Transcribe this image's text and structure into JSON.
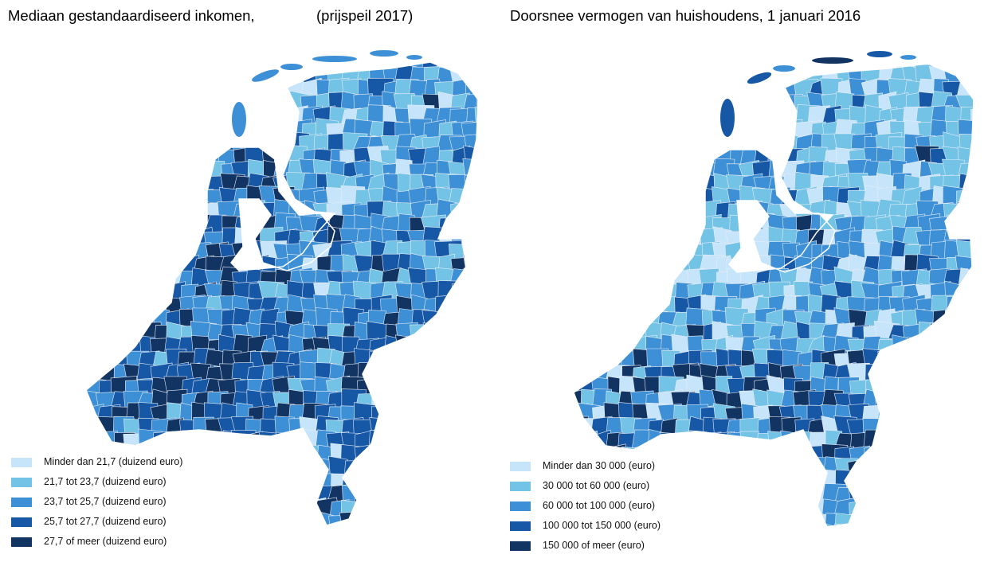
{
  "colors": {
    "class1": "#c6e4fa",
    "class2": "#72c3e6",
    "class3": "#3d90d6",
    "class4": "#1758a6",
    "class5": "#123463",
    "border": "#e9eef5"
  },
  "left_map": {
    "title": "Mediaan gestandaardiseerd inkomen,",
    "title_suffix": "(prijspeil 2017)",
    "legend": [
      {
        "label": "Minder dan 21,7 (duizend euro)",
        "color": "#c6e4fa"
      },
      {
        "label": "21,7 tot 23,7 (duizend euro)",
        "color": "#72c3e6"
      },
      {
        "label": "23,7 tot 25,7 (duizend euro)",
        "color": "#3d90d6"
      },
      {
        "label": "25,7 tot 27,7 (duizend euro)",
        "color": "#1758a6"
      },
      {
        "label": "27,7 of meer (duizend euro)",
        "color": "#123463"
      }
    ]
  },
  "right_map": {
    "title": "Doorsnee vermogen van huishoudens, 1 januari 2016",
    "legend": [
      {
        "label": "Minder dan 30 000 (euro)",
        "color": "#c6e4fa"
      },
      {
        "label": "30 000 tot 60 000 (euro)",
        "color": "#72c3e6"
      },
      {
        "label": "60 000 tot 100 000 (euro)",
        "color": "#3d90d6"
      },
      {
        "label": "100 000 tot 150 000 (euro)",
        "color": "#1758a6"
      },
      {
        "label": "150 000 of meer (euro)",
        "color": "#123463"
      }
    ]
  }
}
